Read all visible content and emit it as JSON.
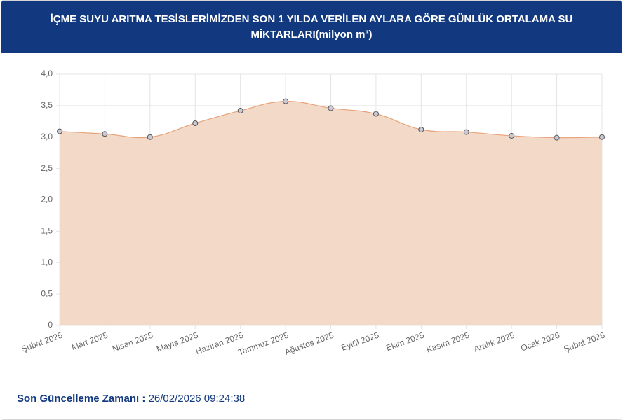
{
  "chart_data": {
    "type": "line",
    "title": "İÇME SUYU ARITMA TESİSLERİMİZDEN SON 1 YILDA VERİLEN AYLARA GÖRE GÜNLÜK ORTALAMA SU MİKTARLARI(milyon m³)",
    "categories": [
      "Şubat 2025",
      "Mart 2025",
      "Nisan 2025",
      "Mayıs 2025",
      "Haziran 2025",
      "Temmuz 2025",
      "Ağustos 2025",
      "Eylül 2025",
      "Ekim 2025",
      "Kasım 2025",
      "Aralık 2025",
      "Ocak 2026",
      "Şubat 2026"
    ],
    "values": [
      3.09,
      3.05,
      3.0,
      3.22,
      3.42,
      3.57,
      3.46,
      3.37,
      3.12,
      3.08,
      3.02,
      2.99,
      3.0
    ],
    "color": "#e8a27a",
    "fill": "#f3d9c8",
    "ylim": [
      0,
      4
    ],
    "yticks": [
      0,
      {
        "value": 0.5,
        "label": "0,5"
      },
      {
        "value": 1,
        "label": "1,0"
      },
      {
        "value": 1.5,
        "label": "1,5"
      },
      {
        "value": 2,
        "label": "2,0"
      },
      {
        "value": 2.5,
        "label": "2,5"
      },
      {
        "value": 3,
        "label": "3,0"
      },
      {
        "value": 3.5,
        "label": "3,5"
      },
      {
        "value": 4,
        "label": "4,0"
      }
    ],
    "grid": true
  },
  "footer": {
    "label": "Son Güncelleme Zamanı :",
    "timestamp": "26/02/2026 09:24:38"
  }
}
